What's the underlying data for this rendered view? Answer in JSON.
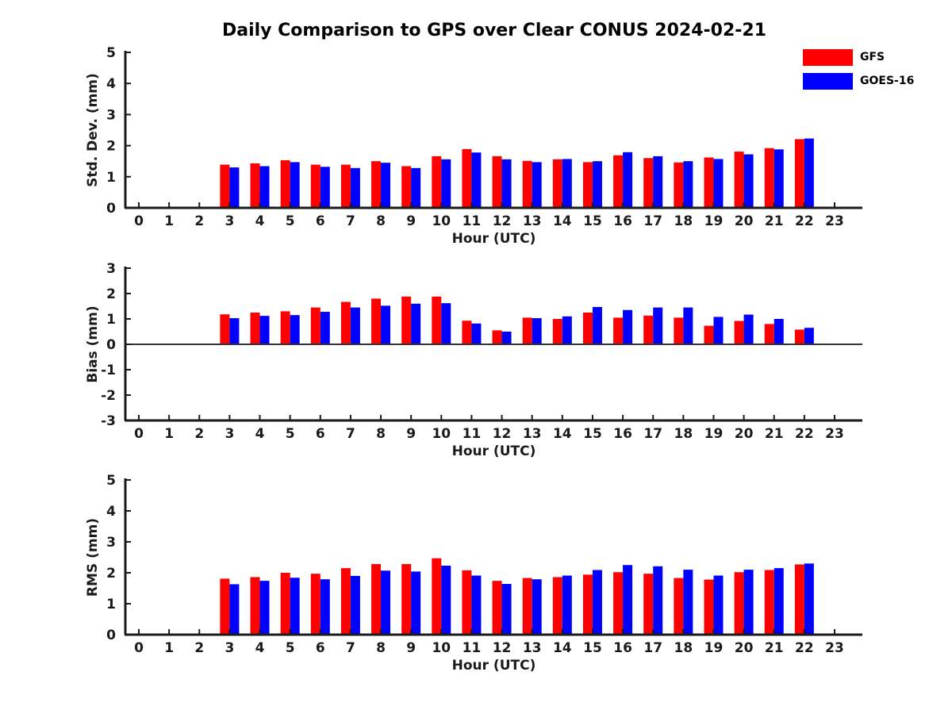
{
  "title": "Daily Comparison to GPS over Clear CONUS 2024-02-21",
  "legend": {
    "entries": [
      {
        "label": "GFS",
        "color": "#ff0000"
      },
      {
        "label": "GOES-16",
        "color": "#0000ff"
      }
    ]
  },
  "colors": {
    "gfs": "#ff0000",
    "goes16": "#0000ff",
    "axis": "#1a1a1a",
    "zero_line": "#333333",
    "background": "#ffffff"
  },
  "chart_data": [
    {
      "type": "bar",
      "panel": "std-dev",
      "ylabel": "Std. Dev. (mm)",
      "xlabel": "Hour (UTC)",
      "ylim": [
        0,
        5
      ],
      "yticks": [
        0,
        1,
        2,
        3,
        4,
        5
      ],
      "xticks": [
        0,
        1,
        2,
        3,
        4,
        5,
        6,
        7,
        8,
        9,
        10,
        11,
        12,
        13,
        14,
        15,
        16,
        17,
        18,
        19,
        20,
        21,
        22,
        23
      ],
      "x": [
        3,
        4,
        5,
        6,
        7,
        8,
        9,
        10,
        11,
        12,
        13,
        14,
        15,
        16,
        17,
        18,
        19,
        20,
        21,
        22
      ],
      "series": [
        {
          "name": "GFS",
          "color": "#ff0000",
          "values": [
            1.39,
            1.43,
            1.53,
            1.39,
            1.39,
            1.5,
            1.34,
            1.66,
            1.89,
            1.66,
            1.51,
            1.56,
            1.47,
            1.69,
            1.6,
            1.46,
            1.62,
            1.81,
            1.92,
            2.21
          ]
        },
        {
          "name": "GOES-16",
          "color": "#0000ff",
          "values": [
            1.3,
            1.34,
            1.47,
            1.32,
            1.28,
            1.45,
            1.28,
            1.56,
            1.78,
            1.56,
            1.47,
            1.57,
            1.5,
            1.79,
            1.66,
            1.5,
            1.57,
            1.72,
            1.88,
            2.23
          ]
        }
      ],
      "grid": false,
      "zero_line": false
    },
    {
      "type": "bar",
      "panel": "bias",
      "ylabel": "Bias (mm)",
      "xlabel": "Hour (UTC)",
      "ylim": [
        -3,
        3
      ],
      "yticks": [
        -3,
        -2,
        -1,
        0,
        1,
        2,
        3
      ],
      "xticks": [
        0,
        1,
        2,
        3,
        4,
        5,
        6,
        7,
        8,
        9,
        10,
        11,
        12,
        13,
        14,
        15,
        16,
        17,
        18,
        19,
        20,
        21,
        22,
        23
      ],
      "x": [
        3,
        4,
        5,
        6,
        7,
        8,
        9,
        10,
        11,
        12,
        13,
        14,
        15,
        16,
        17,
        18,
        19,
        20,
        21,
        22
      ],
      "series": [
        {
          "name": "GFS",
          "color": "#ff0000",
          "values": [
            1.18,
            1.25,
            1.3,
            1.45,
            1.67,
            1.8,
            1.88,
            1.88,
            0.93,
            0.55,
            1.05,
            1.0,
            1.25,
            1.05,
            1.13,
            1.05,
            0.73,
            0.92,
            0.8,
            0.58
          ]
        },
        {
          "name": "GOES-16",
          "color": "#0000ff",
          "values": [
            1.03,
            1.12,
            1.15,
            1.28,
            1.45,
            1.52,
            1.6,
            1.62,
            0.82,
            0.5,
            1.03,
            1.1,
            1.47,
            1.35,
            1.45,
            1.45,
            1.08,
            1.17,
            1.0,
            0.65
          ]
        }
      ],
      "grid": false,
      "zero_line": true
    },
    {
      "type": "bar",
      "panel": "rms",
      "ylabel": "RMS (mm)",
      "xlabel": "Hour (UTC)",
      "ylim": [
        0,
        5
      ],
      "yticks": [
        0,
        1,
        2,
        3,
        4,
        5
      ],
      "xticks": [
        0,
        1,
        2,
        3,
        4,
        5,
        6,
        7,
        8,
        9,
        10,
        11,
        12,
        13,
        14,
        15,
        16,
        17,
        18,
        19,
        20,
        21,
        22,
        23
      ],
      "x": [
        3,
        4,
        5,
        6,
        7,
        8,
        9,
        10,
        11,
        12,
        13,
        14,
        15,
        16,
        17,
        18,
        19,
        20,
        21,
        22
      ],
      "series": [
        {
          "name": "GFS",
          "color": "#ff0000",
          "values": [
            1.81,
            1.86,
            2.0,
            1.97,
            2.15,
            2.28,
            2.28,
            2.47,
            2.08,
            1.74,
            1.83,
            1.86,
            1.94,
            2.02,
            1.97,
            1.83,
            1.78,
            2.02,
            2.09,
            2.27
          ]
        },
        {
          "name": "GOES-16",
          "color": "#0000ff",
          "values": [
            1.63,
            1.74,
            1.84,
            1.79,
            1.9,
            2.07,
            2.04,
            2.23,
            1.91,
            1.64,
            1.79,
            1.91,
            2.09,
            2.25,
            2.21,
            2.1,
            1.91,
            2.1,
            2.15,
            2.3
          ]
        }
      ],
      "grid": false,
      "zero_line": false
    }
  ]
}
